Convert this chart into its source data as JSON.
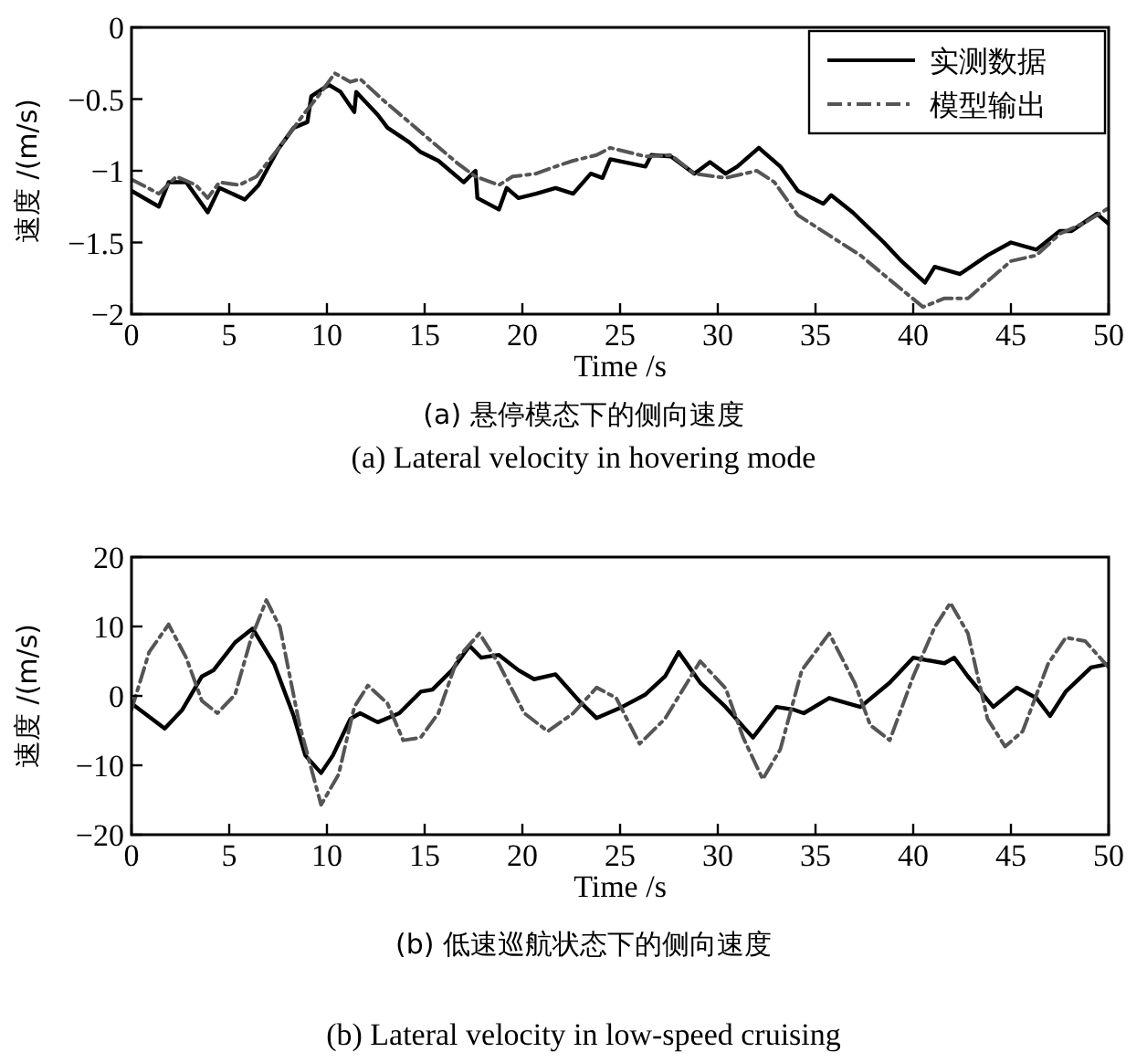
{
  "chart_data": [
    {
      "type": "line",
      "xlabel": "Time /s",
      "ylabel": "速度 /(m/s)",
      "xlim": [
        0,
        50
      ],
      "ylim": [
        -2,
        0
      ],
      "xticks": [
        0,
        5,
        10,
        15,
        20,
        25,
        30,
        35,
        40,
        45,
        50
      ],
      "yticks": [
        -2,
        -1.5,
        -1,
        -0.5,
        0
      ],
      "legend": "top right",
      "grid": false,
      "annotations": [
        "(a)  悬停模态下的侧向速度",
        "(a)  Lateral velocity in hovering mode"
      ],
      "series": [
        {
          "name": "实测数据",
          "color": "#000000",
          "line_style": "solid",
          "x": [
            0,
            1.4,
            1.9,
            2.8,
            3.9,
            4.5,
            5.8,
            6.5,
            7.5,
            8.3,
            9,
            9.2,
            10.1,
            10.7,
            11.4,
            11.5,
            12.6,
            13.1,
            14.2,
            14.8,
            15.7,
            17,
            17.6,
            17.7,
            18.8,
            19.2,
            19.8,
            20.7,
            21.7,
            22.6,
            23.5,
            24.1,
            24.5,
            26.3,
            26.6,
            27.6,
            28.8,
            29.6,
            30.4,
            31,
            32.1,
            33.2,
            34.1,
            35.4,
            35.8,
            36.9,
            38.5,
            39.4,
            40.6,
            41.1,
            42.4,
            43.8,
            45,
            46.3,
            47.5,
            48.1,
            49.4,
            50
          ],
          "values": [
            -1.14,
            -1.25,
            -1.08,
            -1.08,
            -1.29,
            -1.12,
            -1.2,
            -1.1,
            -0.85,
            -0.7,
            -0.66,
            -0.48,
            -0.4,
            -0.45,
            -0.59,
            -0.45,
            -0.61,
            -0.7,
            -0.8,
            -0.87,
            -0.93,
            -1.08,
            -1,
            -1.19,
            -1.27,
            -1.12,
            -1.19,
            -1.16,
            -1.12,
            -1.16,
            -1.02,
            -1.05,
            -0.92,
            -0.97,
            -0.89,
            -0.9,
            -1.02,
            -0.94,
            -1.02,
            -0.97,
            -0.84,
            -0.97,
            -1.14,
            -1.23,
            -1.17,
            -1.29,
            -1.5,
            -1.63,
            -1.78,
            -1.67,
            -1.72,
            -1.59,
            -1.5,
            -1.55,
            -1.42,
            -1.42,
            -1.3,
            -1.37
          ]
        },
        {
          "name": "模型输出",
          "color": "#555555",
          "line_style": "dashdot",
          "x": [
            0,
            1.4,
            2.3,
            3.3,
            3.9,
            4.5,
            5.5,
            6.4,
            7.6,
            8.9,
            9.5,
            10.4,
            11.2,
            11.7,
            12.9,
            14.2,
            15.4,
            16.7,
            17.6,
            18.8,
            19.5,
            20.7,
            21.7,
            22.6,
            23.8,
            24.5,
            26.3,
            27.6,
            28.8,
            30.4,
            32,
            32.9,
            34.1,
            35.7,
            37.3,
            38.8,
            40.5,
            41.6,
            42.8,
            45,
            46.3,
            47.5,
            48.8,
            50
          ],
          "values": [
            -1.06,
            -1.16,
            -1.04,
            -1.1,
            -1.19,
            -1.08,
            -1.1,
            -1.04,
            -0.83,
            -0.59,
            -0.49,
            -0.32,
            -0.38,
            -0.36,
            -0.51,
            -0.66,
            -0.8,
            -0.95,
            -1.04,
            -1.1,
            -1.04,
            -1.02,
            -0.97,
            -0.93,
            -0.89,
            -0.84,
            -0.9,
            -0.89,
            -1.02,
            -1.05,
            -1,
            -1.08,
            -1.31,
            -1.45,
            -1.59,
            -1.76,
            -1.95,
            -1.89,
            -1.89,
            -1.63,
            -1.59,
            -1.44,
            -1.36,
            -1.26
          ]
        }
      ]
    },
    {
      "type": "line",
      "xlabel": "Time /s",
      "ylabel": "速度 /(m/s)",
      "xlim": [
        0,
        50
      ],
      "ylim": [
        -20,
        20
      ],
      "xticks": [
        0,
        5,
        10,
        15,
        20,
        25,
        30,
        35,
        40,
        45,
        50
      ],
      "yticks": [
        -20,
        -10,
        0,
        10,
        20
      ],
      "grid": false,
      "annotations": [
        "(b)  低速巡航状态下的侧向速度",
        "(b)  Lateral velocity in low-speed cruising"
      ],
      "series": [
        {
          "color": "#000000",
          "line_style": "solid",
          "x": [
            0,
            1.7,
            2.6,
            3.6,
            4.2,
            5.3,
            6.2,
            7.3,
            8.3,
            8.9,
            9.7,
            10.3,
            11.2,
            11.7,
            12.6,
            13.7,
            14.8,
            15.4,
            16.4,
            17.3,
            17.9,
            18.8,
            19.8,
            20.6,
            21.7,
            22.9,
            23.8,
            25.1,
            26.3,
            27.3,
            28,
            29.1,
            30.4,
            31.8,
            33,
            33.9,
            34.4,
            35.7,
            37.3,
            38.8,
            40,
            41.6,
            42.1,
            42.8,
            44.1,
            45.3,
            46.3,
            47,
            47.8,
            49.1,
            50
          ],
          "values": [
            -1.1,
            -4.7,
            -2,
            2.8,
            3.7,
            7.7,
            9.7,
            4.6,
            -2.9,
            -8.6,
            -11.1,
            -8.6,
            -3.3,
            -2.5,
            -3.8,
            -2.5,
            0.6,
            0.9,
            3.7,
            7.2,
            5.5,
            5.9,
            3.7,
            2.4,
            3.1,
            -0.7,
            -3.2,
            -1.6,
            0.2,
            2.8,
            6.3,
            1.9,
            -1.6,
            -6,
            -1.6,
            -2,
            -2.5,
            -0.3,
            -1.6,
            1.9,
            5.5,
            4.7,
            5.5,
            2.8,
            -1.6,
            1.2,
            -0.3,
            -2.9,
            0.6,
            4.1,
            4.6
          ]
        },
        {
          "color": "#555555",
          "line_style": "dashdot",
          "x": [
            0,
            0.9,
            1.9,
            2.8,
            3.6,
            4.4,
            5.3,
            6.1,
            6.9,
            7.6,
            8.6,
            9.7,
            10.6,
            11.4,
            12.1,
            13.1,
            13.9,
            14.8,
            15.7,
            16.7,
            17.8,
            18.8,
            20.1,
            21.3,
            22.6,
            23.8,
            24.8,
            26,
            27.3,
            29.1,
            30.4,
            31.3,
            32.3,
            33.2,
            34.3,
            35.7,
            37,
            37.8,
            38.8,
            40,
            41.1,
            41.9,
            42.8,
            43.8,
            44.7,
            45.6,
            46.9,
            47.8,
            48.8,
            50
          ],
          "values": [
            -2,
            6.3,
            10.3,
            5.5,
            -0.7,
            -2.5,
            0.2,
            8.1,
            13.8,
            9.9,
            -4.2,
            -15.7,
            -11.3,
            -1.6,
            1.5,
            -1.1,
            -6.4,
            -6,
            -2.5,
            5.5,
            9,
            4.6,
            -2.5,
            -5.1,
            -2.5,
            1.2,
            -0.3,
            -6.9,
            -3.3,
            5,
            1.1,
            -6,
            -12,
            -7.7,
            3.7,
            9,
            1.9,
            -4.2,
            -6.4,
            2.8,
            9.9,
            13.4,
            9,
            -3.3,
            -7.3,
            -5.1,
            4.6,
            8.4,
            7.9,
            4.1
          ]
        }
      ]
    }
  ]
}
